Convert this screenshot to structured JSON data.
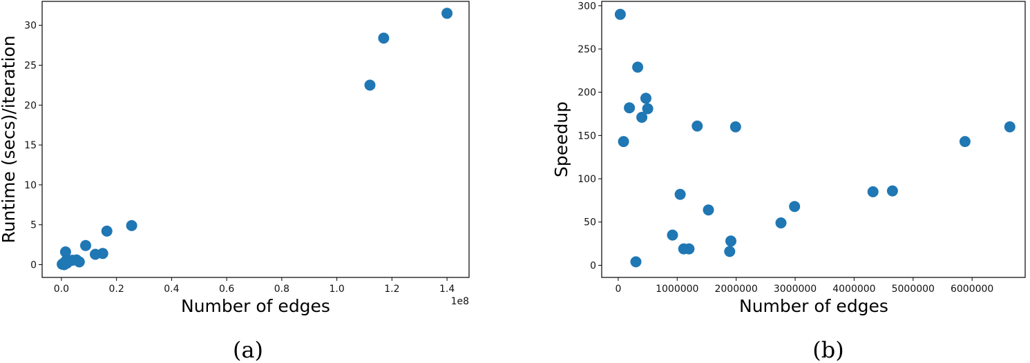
{
  "chart_data": [
    {
      "id": "a",
      "type": "scatter",
      "caption": "(a)",
      "title": "",
      "xlabel": "Number of edges",
      "ylabel": "Runtime (secs)/iteration",
      "x_offset_label": "1e8",
      "xlim": [
        -0.07,
        1.48
      ],
      "ylim": [
        -1.6,
        33.0
      ],
      "xticks": [
        0.0,
        0.2,
        0.4,
        0.6,
        0.8,
        1.0,
        1.2,
        1.4
      ],
      "xtick_labels": [
        "0.0",
        "0.2",
        "0.4",
        "0.6",
        "0.8",
        "1.0",
        "1.2",
        "1.4"
      ],
      "yticks": [
        0,
        5,
        10,
        15,
        20,
        25,
        30
      ],
      "ytick_labels": [
        "0",
        "5",
        "10",
        "15",
        "20",
        "25",
        "30"
      ],
      "x_unit_scale": 100000000,
      "grid": false,
      "legend": null,
      "marker_color": "#1f77b4",
      "points": [
        {
          "x": 140000000,
          "y": 31.5
        },
        {
          "x": 117000000,
          "y": 28.4
        },
        {
          "x": 112000000,
          "y": 22.5
        },
        {
          "x": 25500000,
          "y": 4.9
        },
        {
          "x": 16500000,
          "y": 4.2
        },
        {
          "x": 8800000,
          "y": 2.4
        },
        {
          "x": 15000000,
          "y": 1.4
        },
        {
          "x": 12300000,
          "y": 1.3
        },
        {
          "x": 1500000,
          "y": 1.6
        },
        {
          "x": 6500000,
          "y": 0.35
        },
        {
          "x": 5500000,
          "y": 0.6
        },
        {
          "x": 4000000,
          "y": 0.55
        },
        {
          "x": 2800000,
          "y": 0.5
        },
        {
          "x": 1700000,
          "y": 0.5
        },
        {
          "x": 800000,
          "y": 0.2
        },
        {
          "x": 300000,
          "y": 0.05
        },
        {
          "x": 1000000,
          "y": 0.0
        },
        {
          "x": 2000000,
          "y": 0.2
        }
      ]
    },
    {
      "id": "b",
      "type": "scatter",
      "caption": "(b)",
      "title": "",
      "xlabel": "Number of edges",
      "ylabel": "Speedup",
      "xlim": [
        -280000,
        6900000
      ],
      "ylim": [
        -14,
        305
      ],
      "xticks": [
        0,
        1000000,
        2000000,
        3000000,
        4000000,
        5000000,
        6000000
      ],
      "xtick_labels": [
        "0",
        "1000000",
        "2000000",
        "3000000",
        "4000000",
        "5000000",
        "6000000"
      ],
      "yticks": [
        0,
        50,
        100,
        150,
        200,
        250,
        300
      ],
      "ytick_labels": [
        "0",
        "50",
        "100",
        "150",
        "200",
        "250",
        "300"
      ],
      "grid": false,
      "legend": null,
      "marker_color": "#1f77b4",
      "points": [
        {
          "x": 35000,
          "y": 290
        },
        {
          "x": 330000,
          "y": 229
        },
        {
          "x": 470000,
          "y": 193
        },
        {
          "x": 500000,
          "y": 181
        },
        {
          "x": 190000,
          "y": 182
        },
        {
          "x": 400000,
          "y": 171
        },
        {
          "x": 90000,
          "y": 143
        },
        {
          "x": 1340000,
          "y": 161
        },
        {
          "x": 1990000,
          "y": 160
        },
        {
          "x": 1050000,
          "y": 82
        },
        {
          "x": 1530000,
          "y": 64
        },
        {
          "x": 920000,
          "y": 35
        },
        {
          "x": 1110000,
          "y": 19
        },
        {
          "x": 1200000,
          "y": 19
        },
        {
          "x": 1910000,
          "y": 28
        },
        {
          "x": 1890000,
          "y": 16
        },
        {
          "x": 300000,
          "y": 4
        },
        {
          "x": 2760000,
          "y": 49
        },
        {
          "x": 2990000,
          "y": 68
        },
        {
          "x": 4320000,
          "y": 85
        },
        {
          "x": 4650000,
          "y": 86
        },
        {
          "x": 5880000,
          "y": 143
        },
        {
          "x": 6640000,
          "y": 160
        }
      ]
    }
  ],
  "panels": {
    "a": {
      "caption": "(a)",
      "xlabel": "Number of edges",
      "ylabel": "Runtime (secs)/iteration",
      "offset": "1e8"
    },
    "b": {
      "caption": "(b)",
      "xlabel": "Number of edges",
      "ylabel": "Speedup"
    }
  }
}
